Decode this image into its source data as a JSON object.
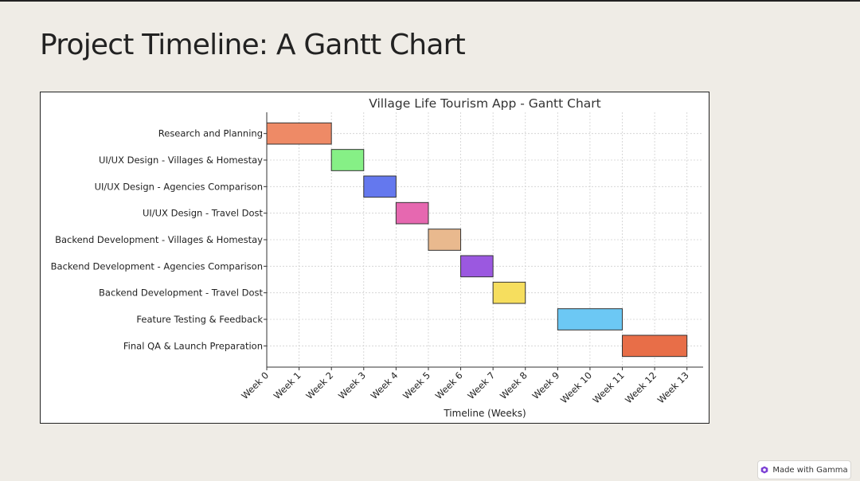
{
  "slide": {
    "title": "Project Timeline: A Gantt Chart"
  },
  "badge": {
    "label": "Made with Gamma",
    "icon": "gamma-logo-icon",
    "icon_color": "#7b3fd4"
  },
  "chart_data": {
    "type": "gantt",
    "title": "Village Life Tourism App - Gantt Chart",
    "xlabel": "Timeline (Weeks)",
    "ylabel": "",
    "xlim": [
      0,
      13.5
    ],
    "x_ticks": [
      "Week 0",
      "Week 1",
      "Week 2",
      "Week 3",
      "Week 4",
      "Week 5",
      "Week 6",
      "Week 7",
      "Week 8",
      "Week 9",
      "Week 10",
      "Week 11",
      "Week 12",
      "Week 13"
    ],
    "grid": true,
    "tasks": [
      {
        "name": "Research and Planning",
        "start": 0,
        "end": 2,
        "color": "#ee8a66"
      },
      {
        "name": "UI/UX Design - Villages & Homestay",
        "start": 2,
        "end": 3,
        "color": "#86f086"
      },
      {
        "name": "UI/UX Design - Agencies Comparison",
        "start": 3,
        "end": 4,
        "color": "#6478ee"
      },
      {
        "name": "UI/UX Design - Travel Dost",
        "start": 4,
        "end": 5,
        "color": "#e668b0"
      },
      {
        "name": "Backend Development - Villages & Homestay",
        "start": 5,
        "end": 6,
        "color": "#e9b98e"
      },
      {
        "name": "Backend Development - Agencies Comparison",
        "start": 6,
        "end": 7,
        "color": "#9b58e0"
      },
      {
        "name": "Backend Development - Travel Dost",
        "start": 7,
        "end": 8,
        "color": "#f6de5e"
      },
      {
        "name": "Feature Testing & Feedback",
        "start": 9,
        "end": 11,
        "color": "#6cc8f4"
      },
      {
        "name": "Final QA & Launch Preparation",
        "start": 11,
        "end": 13,
        "color": "#e86e48"
      }
    ]
  }
}
